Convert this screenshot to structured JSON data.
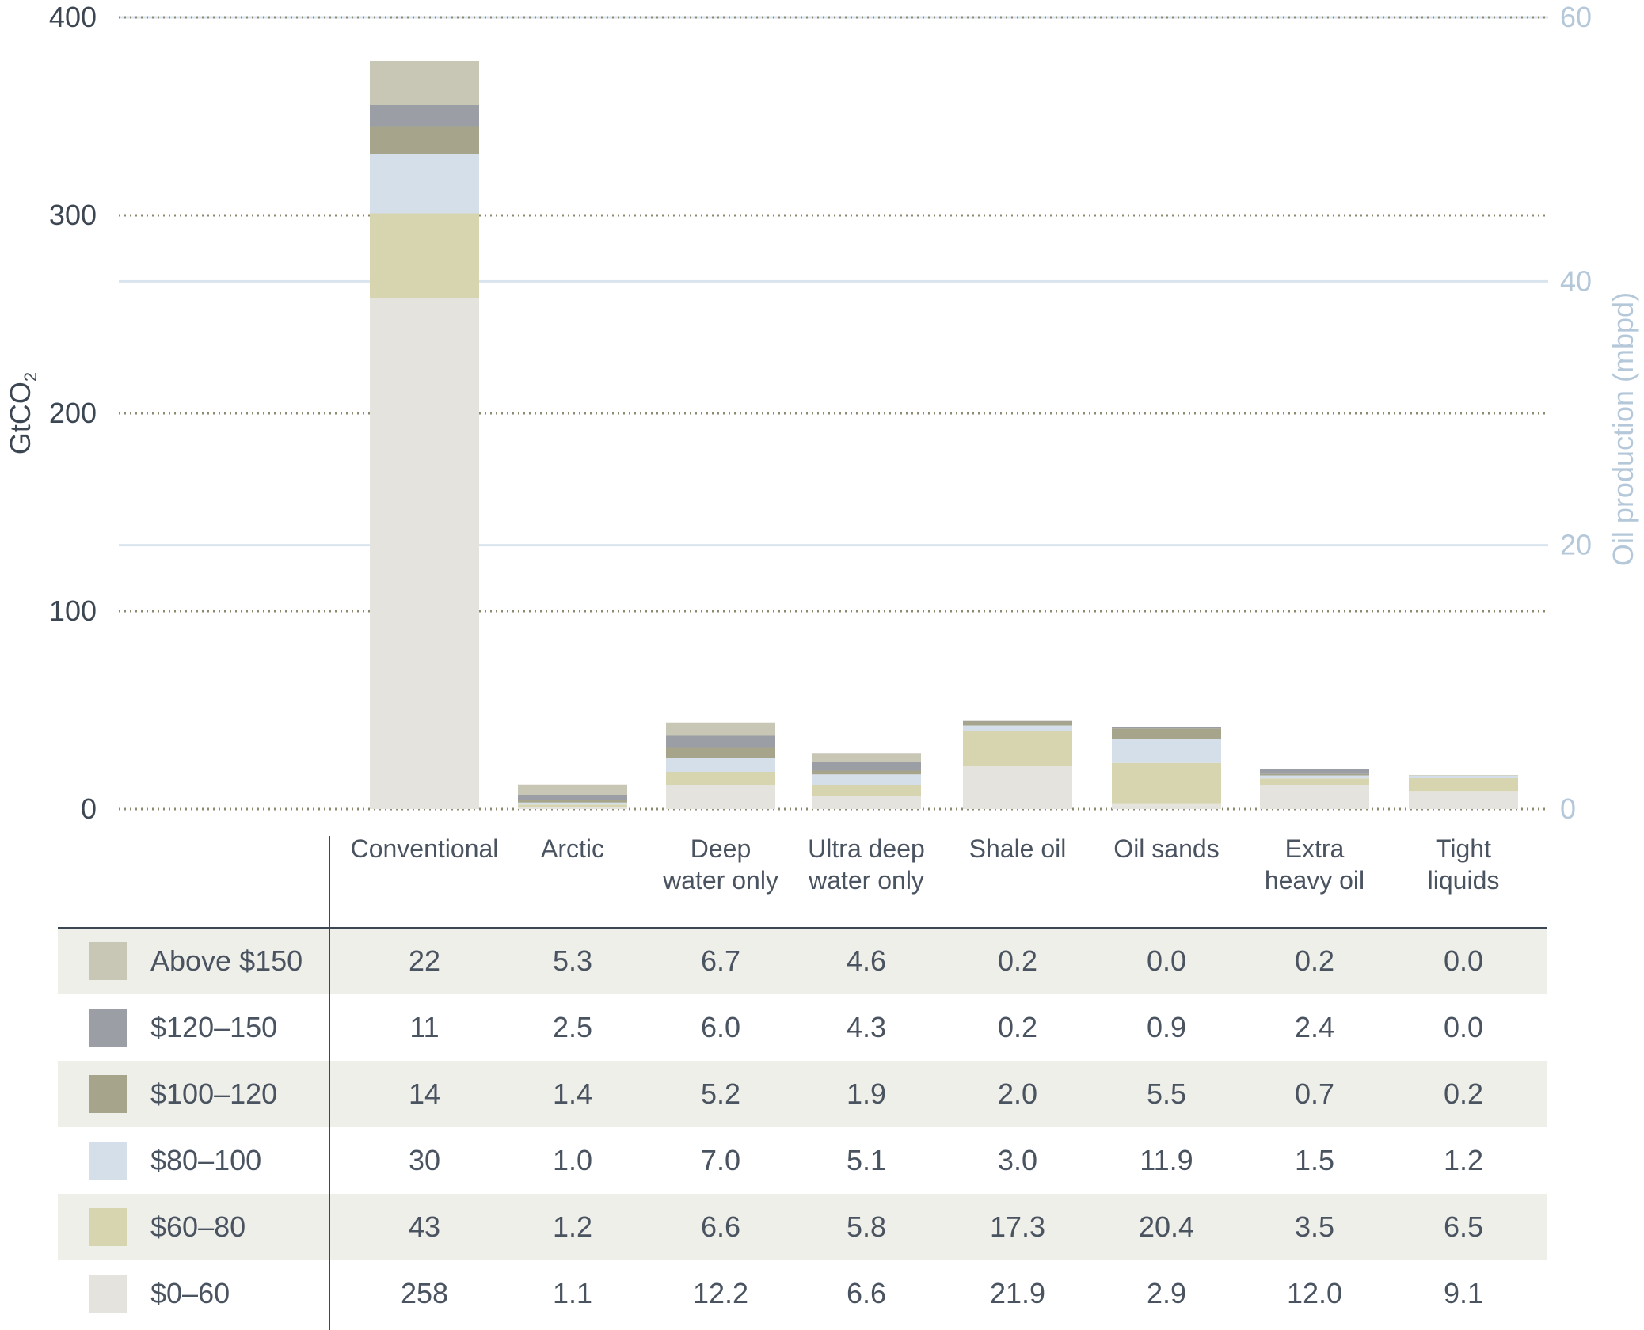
{
  "chart_data": {
    "type": "bar",
    "stacked": true,
    "categories": [
      "Conventional",
      "Arctic",
      "Deep water only",
      "Ultra deep water only",
      "Shale oil",
      "Oil sands",
      "Extra heavy oil",
      "Tight liquids"
    ],
    "category_lines": [
      [
        "Conventional"
      ],
      [
        "Arctic"
      ],
      [
        "Deep",
        "water only"
      ],
      [
        "Ultra deep",
        "water only"
      ],
      [
        "Shale oil"
      ],
      [
        "Oil sands"
      ],
      [
        "Extra",
        "heavy oil"
      ],
      [
        "Tight",
        "liquids"
      ]
    ],
    "series": [
      {
        "name": "$0–60",
        "color": "#e4e3dd",
        "values": [
          "258",
          "1.1",
          "12.2",
          "6.6",
          "21.9",
          "2.9",
          "12.0",
          "9.1"
        ]
      },
      {
        "name": "$60–80",
        "color": "#d7d5b0",
        "values": [
          "43",
          "1.2",
          "6.6",
          "5.8",
          "17.3",
          "20.4",
          "3.5",
          "6.5"
        ]
      },
      {
        "name": "$80–100",
        "color": "#d4dfe9",
        "values": [
          "30",
          "1.0",
          "7.0",
          "5.1",
          "3.0",
          "11.9",
          "1.5",
          "1.2"
        ]
      },
      {
        "name": "$100–120",
        "color": "#a6a58c",
        "values": [
          "14",
          "1.4",
          "5.2",
          "1.9",
          "2.0",
          "5.5",
          "0.7",
          "0.2"
        ]
      },
      {
        "name": "$120–150",
        "color": "#9c9ea5",
        "values": [
          "11",
          "2.5",
          "6.0",
          "4.3",
          "0.2",
          "0.9",
          "2.4",
          "0.0"
        ]
      },
      {
        "name": "Above $150",
        "color": "#c8c6b5",
        "values": [
          "22",
          "5.3",
          "6.7",
          "4.6",
          "0.2",
          "0.0",
          "0.2",
          "0.0"
        ]
      }
    ],
    "table_row_order": [
      "Above $150",
      "$120–150",
      "$100–120",
      "$80–100",
      "$60–80",
      "$0–60"
    ],
    "ylabel": "GtCO₂",
    "ylabel_parts": {
      "main": "GtCO",
      "sub": "2"
    },
    "y2label": "Oil production (mbpd)",
    "ylim": [
      0,
      400
    ],
    "yticks": [
      0,
      100,
      200,
      300,
      400
    ],
    "y2lim": [
      0,
      60
    ],
    "y2ticks": [
      0,
      20,
      40,
      60
    ],
    "grid": true,
    "legend": "table-left"
  },
  "colors": {
    "axis_text": "#3d4753",
    "secondary_axis": "#b4c8da",
    "dotted_grid": "#8e8a70",
    "solid_grid": "#d9e4ee",
    "table_band": "#efefea",
    "table_rule": "#3d4753"
  }
}
